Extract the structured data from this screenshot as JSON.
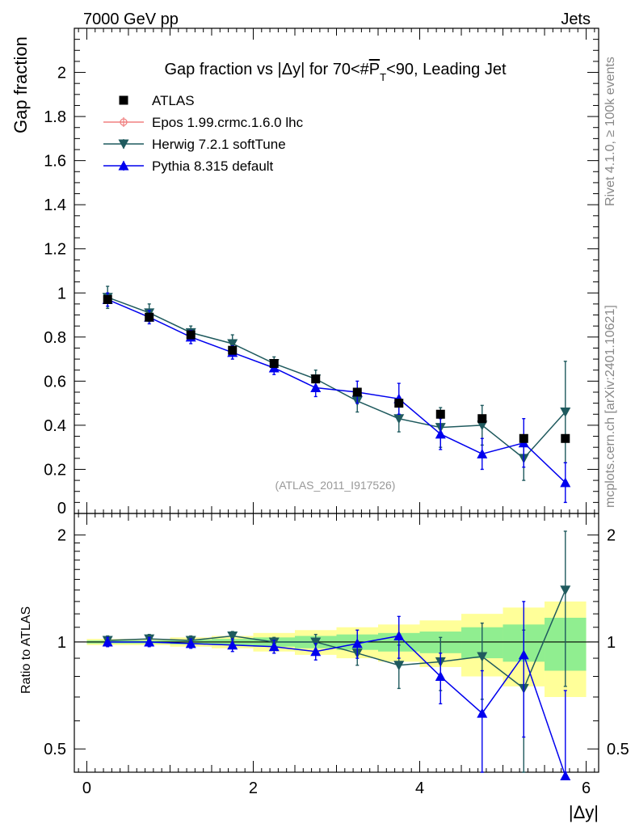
{
  "header": {
    "left": "7000 GeV pp",
    "right": "Jets"
  },
  "title_parts": {
    "before": "Gap fraction vs |Δy| for 70<#",
    "over": "P",
    "sub": "T",
    "after": "<90, Leading Jet"
  },
  "side_labels": {
    "rivet": "Rivet 4.1.0, ≥ 100k events",
    "mcplots": "mcplots.cern.ch [arXiv:2401.10621]"
  },
  "watermark": "(ATLAS_2011_I917526)",
  "colors": {
    "atlas": "#000000",
    "epos": "#f08080",
    "herwig": "#1f5a5e",
    "pythia": "#0000ee",
    "band_inner": "#90ee90",
    "band_outer": "#ffff99"
  },
  "chart_data": [
    {
      "type": "scatter",
      "panel": "main",
      "title": "Gap fraction vs |Δy| for 70<#P̄T<90, Leading Jet",
      "xlabel": "|Δy|",
      "ylabel": "Gap fraction",
      "xlim": [
        -0.15,
        6.15
      ],
      "ylim": [
        0,
        2.2
      ],
      "x_ticks": [
        0,
        2,
        4,
        6
      ],
      "y_ticks": [
        {
          "v": 0,
          "label": "0"
        },
        {
          "v": 0.2,
          "label": "0.2"
        },
        {
          "v": 0.4,
          "label": "0.4"
        },
        {
          "v": 0.6,
          "label": "0.6"
        },
        {
          "v": 0.8,
          "label": "0.8"
        },
        {
          "v": 1.0,
          "label": "1"
        },
        {
          "v": 1.2,
          "label": "1.2"
        },
        {
          "v": 1.4,
          "label": "1.4"
        },
        {
          "v": 1.6,
          "label": "1.6"
        },
        {
          "v": 1.8,
          "label": "1.8"
        },
        {
          "v": 2.0,
          "label": "2"
        }
      ],
      "x": [
        0.25,
        0.75,
        1.25,
        1.75,
        2.25,
        2.75,
        3.25,
        3.75,
        4.25,
        4.75,
        5.25,
        5.75
      ],
      "bin_edges": [
        0,
        0.5,
        1.0,
        1.5,
        2.0,
        2.5,
        3.0,
        3.5,
        4.0,
        4.5,
        5.0,
        5.5,
        6.0
      ],
      "legend_position": "top-left",
      "series": [
        {
          "name": "ATLAS",
          "marker": "square",
          "values": [
            0.97,
            0.89,
            0.81,
            0.74,
            0.68,
            0.61,
            0.55,
            0.5,
            0.45,
            0.43,
            0.34,
            0.34
          ],
          "errors": [
            0.005,
            0.005,
            0.005,
            0.005,
            0.005,
            0.005,
            0.005,
            0.005,
            0.005,
            0.005,
            0.005,
            0.005
          ]
        },
        {
          "name": "Epos 1.99.crmc.1.6.0 lhc",
          "marker": "open-circle",
          "values": [],
          "errors": []
        },
        {
          "name": "Herwig 7.2.1 softTune",
          "marker": "triangle-down",
          "values": [
            0.98,
            0.91,
            0.82,
            0.77,
            0.68,
            0.61,
            0.51,
            0.43,
            0.39,
            0.4,
            0.25,
            0.46
          ],
          "errors": [
            0.05,
            0.04,
            0.03,
            0.04,
            0.03,
            0.04,
            0.05,
            0.06,
            0.09,
            0.09,
            0.1,
            0.23
          ]
        },
        {
          "name": "Pythia 8.315 default",
          "marker": "triangle-up",
          "values": [
            0.97,
            0.89,
            0.8,
            0.73,
            0.66,
            0.57,
            0.55,
            0.52,
            0.36,
            0.27,
            0.32,
            0.14
          ],
          "errors": [
            0.03,
            0.03,
            0.03,
            0.03,
            0.03,
            0.04,
            0.05,
            0.07,
            0.07,
            0.07,
            0.11,
            0.09
          ]
        }
      ]
    },
    {
      "type": "scatter",
      "panel": "ratio",
      "xlabel": "|Δy|",
      "ylabel": "Ratio to ATLAS",
      "xlim": [
        -0.15,
        6.15
      ],
      "ylim": [
        0.43,
        2.3
      ],
      "y_scale": "log",
      "x_ticks": [
        0,
        2,
        4,
        6
      ],
      "y_ticks": [
        {
          "v": 0.5,
          "label": "0.5"
        },
        {
          "v": 1,
          "label": "1"
        },
        {
          "v": 2,
          "label": "2"
        }
      ],
      "reference": 1,
      "band_inner": [
        0.01,
        0.01,
        0.015,
        0.02,
        0.03,
        0.04,
        0.05,
        0.06,
        0.07,
        0.1,
        0.12,
        0.17
      ],
      "band_outer": [
        0.02,
        0.02,
        0.03,
        0.04,
        0.06,
        0.08,
        0.1,
        0.12,
        0.15,
        0.2,
        0.25,
        0.3
      ],
      "series": [
        {
          "name": "Herwig 7.2.1 softTune",
          "values": [
            1.01,
            1.02,
            1.01,
            1.04,
            1.0,
            1.0,
            0.93,
            0.86,
            0.88,
            0.91,
            0.74,
            1.4
          ],
          "errors": [
            0.03,
            0.03,
            0.03,
            0.03,
            0.03,
            0.05,
            0.07,
            0.12,
            0.15,
            0.22,
            0.34,
            0.65
          ]
        },
        {
          "name": "Pythia 8.315 default",
          "values": [
            1.0,
            1.0,
            0.99,
            0.98,
            0.97,
            0.94,
            0.99,
            1.04,
            0.8,
            0.63,
            0.92,
            0.42
          ],
          "errors": [
            0.03,
            0.03,
            0.03,
            0.04,
            0.04,
            0.05,
            0.09,
            0.14,
            0.13,
            0.2,
            0.38,
            0.31
          ]
        }
      ]
    }
  ]
}
